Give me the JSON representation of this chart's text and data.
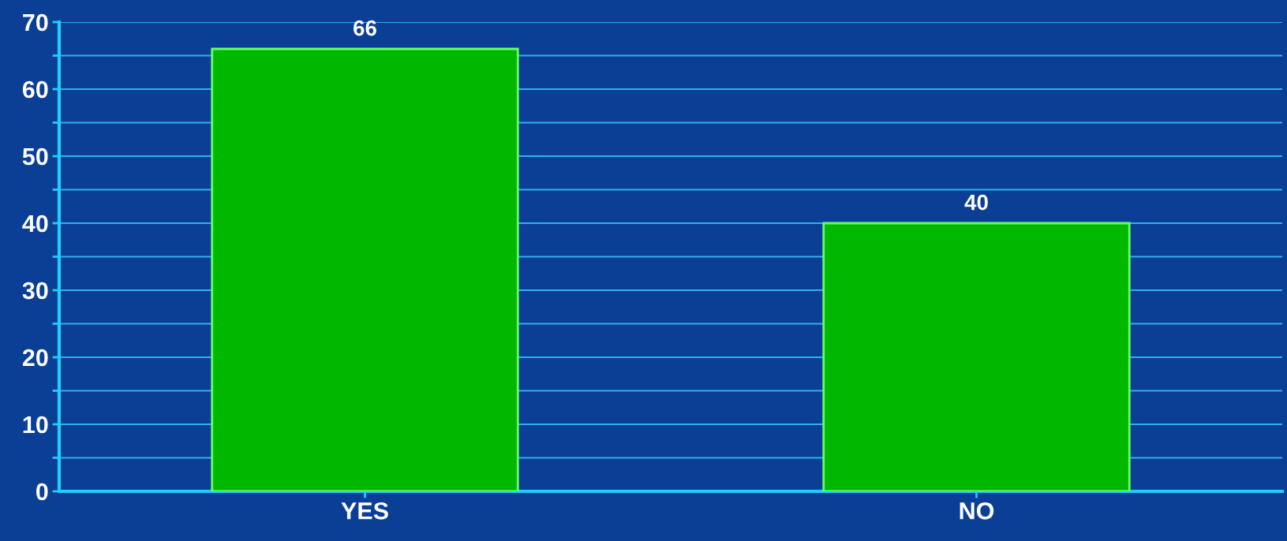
{
  "chart_data": {
    "type": "bar",
    "categories": [
      "YES",
      "NO"
    ],
    "values": [
      66,
      40
    ],
    "color": "#00b800",
    "ylim": [
      0,
      70
    ],
    "yticks": [
      0,
      {
        "value": 5,
        "label": null
      },
      10,
      {
        "value": 15,
        "label": null
      },
      20,
      {
        "value": 25,
        "label": null
      },
      30,
      {
        "value": 35,
        "label": null
      },
      40,
      {
        "value": 45,
        "label": null
      },
      50,
      {
        "value": 55,
        "label": null
      },
      60,
      {
        "value": 65,
        "label": null
      },
      70
    ],
    "grid": "y",
    "data_labels": true,
    "legend": false
  }
}
